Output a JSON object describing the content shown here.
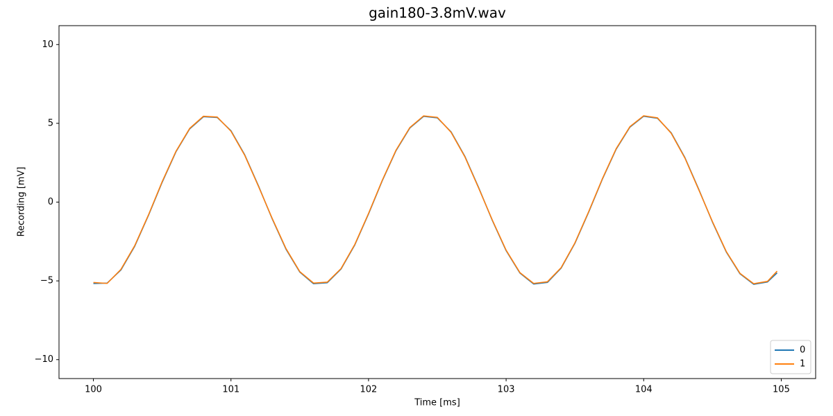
{
  "chart_data": {
    "type": "line",
    "title": "gain180-3.8mV.wav",
    "x_label": "Time [ms]",
    "y_label": "Recording [mV]",
    "x": [
      100.0,
      100.1,
      100.2,
      100.3,
      100.4,
      100.5,
      100.6,
      100.7,
      100.8,
      100.9,
      101.0,
      101.1,
      101.2,
      101.3,
      101.4,
      101.5,
      101.6,
      101.7,
      101.8,
      101.9,
      102.0,
      102.1,
      102.2,
      102.3,
      102.4,
      102.5,
      102.6,
      102.7,
      102.8,
      102.9,
      103.0,
      103.1,
      103.2,
      103.3,
      103.4,
      103.5,
      103.6,
      103.7,
      103.8,
      103.9,
      104.0,
      104.1,
      104.2,
      104.3,
      104.4,
      104.5,
      104.6,
      104.7,
      104.8,
      104.9,
      104.97
    ],
    "series": [
      {
        "name": "0",
        "color": "#1f77b4",
        "values": [
          -5.17,
          -5.14,
          -4.31,
          -2.81,
          -0.85,
          1.26,
          3.19,
          4.65,
          5.42,
          5.37,
          4.53,
          3.0,
          1.03,
          -1.07,
          -2.99,
          -4.44,
          -5.18,
          -5.12,
          -4.25,
          -2.72,
          -0.75,
          1.36,
          3.27,
          4.7,
          5.44,
          5.35,
          4.46,
          2.91,
          0.93,
          -1.17,
          -3.08,
          -4.5,
          -5.2,
          -5.1,
          -4.19,
          -2.62,
          -0.64,
          1.46,
          3.36,
          4.76,
          5.45,
          5.32,
          4.4,
          2.82,
          0.82,
          -1.27,
          -3.16,
          -4.55,
          -5.22,
          -5.07,
          -4.49
        ]
      },
      {
        "name": "1",
        "color": "#ff7f0e",
        "values": [
          -5.1,
          -5.16,
          -4.27,
          -2.77,
          -0.82,
          1.3,
          3.22,
          4.68,
          5.45,
          5.4,
          4.5,
          2.97,
          1.0,
          -1.04,
          -2.95,
          -4.41,
          -5.14,
          -5.08,
          -4.22,
          -2.69,
          -0.72,
          1.39,
          3.3,
          4.73,
          5.47,
          5.38,
          4.43,
          2.88,
          0.9,
          -1.14,
          -3.05,
          -4.47,
          -5.16,
          -5.06,
          -4.16,
          -2.59,
          -0.61,
          1.49,
          3.39,
          4.79,
          5.48,
          5.35,
          4.37,
          2.79,
          0.79,
          -1.24,
          -3.13,
          -4.52,
          -5.18,
          -5.03,
          -4.38
        ]
      }
    ],
    "xlim": [
      99.75,
      105.25
    ],
    "xticks": [
      100,
      101,
      102,
      103,
      104,
      105
    ],
    "ylim": [
      -11.2,
      11.2
    ],
    "yticks": [
      {
        "value": -10,
        "label": "−10"
      },
      {
        "value": -5,
        "label": "−5"
      },
      0,
      5,
      10
    ],
    "grid": false,
    "legend": "lower right"
  }
}
